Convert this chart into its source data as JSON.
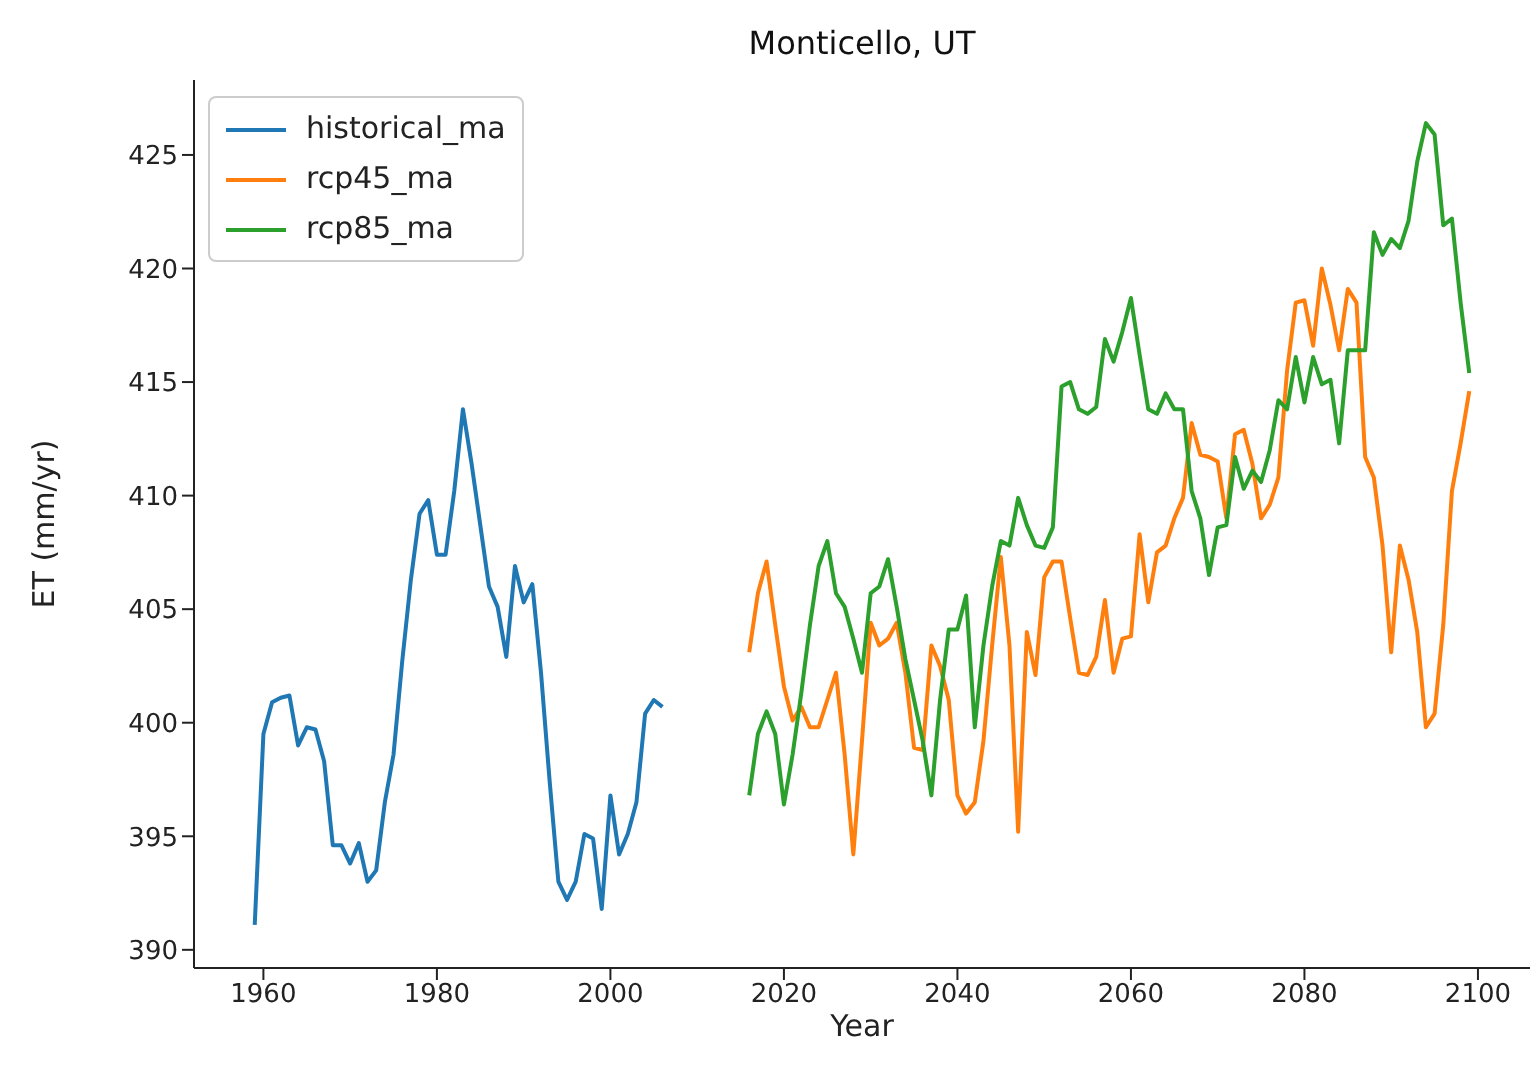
{
  "chart_data": {
    "type": "line",
    "title": "Monticello, UT",
    "xlabel": "Year",
    "ylabel": "ET (mm/yr)",
    "xlim": [
      1952,
      2106
    ],
    "xticks": [
      1960,
      1980,
      2000,
      2020,
      2040,
      2060,
      2080,
      2100
    ],
    "ylim": [
      389.2,
      428.3
    ],
    "yticks": [
      390,
      395,
      400,
      405,
      410,
      415,
      420,
      425
    ],
    "grid": false,
    "legend": "top left",
    "marker": "none",
    "line_style": "solid",
    "series": [
      {
        "name": "historical_ma",
        "color": "#1f77b4",
        "x": [
          1959,
          1960,
          1961,
          1962,
          1963,
          1964,
          1965,
          1966,
          1967,
          1968,
          1969,
          1970,
          1971,
          1972,
          1973,
          1974,
          1975,
          1976,
          1977,
          1978,
          1979,
          1980,
          1981,
          1982,
          1983,
          1984,
          1985,
          1986,
          1987,
          1988,
          1989,
          1990,
          1991,
          1992,
          1993,
          1994,
          1995,
          1996,
          1997,
          1998,
          1999,
          2000,
          2001,
          2002,
          2003,
          2004,
          2005,
          2006
        ],
        "values": [
          391.1,
          399.5,
          400.9,
          401.1,
          401.2,
          399.0,
          399.8,
          399.7,
          398.3,
          394.6,
          394.6,
          393.8,
          394.7,
          393.0,
          393.5,
          396.5,
          398.6,
          402.7,
          406.3,
          409.2,
          409.8,
          407.4,
          407.4,
          410.2,
          413.8,
          411.4,
          408.7,
          406.0,
          405.1,
          402.9,
          406.9,
          405.3,
          406.1,
          402.2,
          397.4,
          393.0,
          392.2,
          393.0,
          395.1,
          394.9,
          391.8,
          396.8,
          394.2,
          395.1,
          396.5,
          400.4,
          401.0,
          400.7
        ]
      },
      {
        "name": "rcp45_ma",
        "color": "#ff7f0e",
        "x": [
          2016,
          2017,
          2018,
          2019,
          2020,
          2021,
          2022,
          2023,
          2024,
          2025,
          2026,
          2027,
          2028,
          2029,
          2030,
          2031,
          2032,
          2033,
          2034,
          2035,
          2036,
          2037,
          2038,
          2039,
          2040,
          2041,
          2042,
          2043,
          2044,
          2045,
          2046,
          2047,
          2048,
          2049,
          2050,
          2051,
          2052,
          2053,
          2054,
          2055,
          2056,
          2057,
          2058,
          2059,
          2060,
          2061,
          2062,
          2063,
          2064,
          2065,
          2066,
          2067,
          2068,
          2069,
          2070,
          2071,
          2072,
          2073,
          2074,
          2075,
          2076,
          2077,
          2078,
          2079,
          2080,
          2081,
          2082,
          2083,
          2084,
          2085,
          2086,
          2087,
          2088,
          2089,
          2090,
          2091,
          2092,
          2093,
          2094,
          2095,
          2096,
          2097,
          2098,
          2099
        ],
        "values": [
          403.1,
          405.7,
          407.1,
          404.3,
          401.6,
          400.1,
          400.7,
          399.8,
          399.8,
          401.0,
          402.2,
          398.6,
          394.2,
          399.2,
          404.4,
          403.4,
          403.7,
          404.4,
          402.2,
          398.9,
          398.8,
          403.4,
          402.5,
          401.0,
          396.8,
          396.0,
          396.5,
          399.2,
          403.4,
          407.3,
          403.4,
          395.2,
          404.0,
          402.1,
          406.4,
          407.1,
          407.1,
          404.6,
          402.2,
          402.1,
          402.9,
          405.4,
          402.2,
          403.7,
          403.8,
          408.3,
          405.3,
          407.5,
          407.8,
          409.0,
          409.9,
          413.2,
          411.8,
          411.7,
          411.5,
          409.0,
          412.7,
          412.9,
          411.4,
          409.0,
          409.6,
          410.8,
          415.5,
          418.5,
          418.6,
          416.6,
          420.0,
          418.4,
          416.4,
          419.1,
          418.5,
          411.7,
          410.8,
          407.8,
          403.1,
          407.8,
          406.3,
          404.0,
          399.8,
          400.4,
          404.3,
          410.2,
          412.3,
          414.6
        ]
      },
      {
        "name": "rcp85_ma",
        "color": "#2ca02c",
        "x": [
          2016,
          2017,
          2018,
          2019,
          2020,
          2021,
          2022,
          2023,
          2024,
          2025,
          2026,
          2027,
          2028,
          2029,
          2030,
          2031,
          2032,
          2033,
          2034,
          2035,
          2036,
          2037,
          2038,
          2039,
          2040,
          2041,
          2042,
          2043,
          2044,
          2045,
          2046,
          2047,
          2048,
          2049,
          2050,
          2051,
          2052,
          2053,
          2054,
          2055,
          2056,
          2057,
          2058,
          2059,
          2060,
          2061,
          2062,
          2063,
          2064,
          2065,
          2066,
          2067,
          2068,
          2069,
          2070,
          2071,
          2072,
          2073,
          2074,
          2075,
          2076,
          2077,
          2078,
          2079,
          2080,
          2081,
          2082,
          2083,
          2084,
          2085,
          2086,
          2087,
          2088,
          2089,
          2090,
          2091,
          2092,
          2093,
          2094,
          2095,
          2096,
          2097,
          2098,
          2099
        ],
        "values": [
          396.8,
          399.5,
          400.5,
          399.5,
          396.4,
          398.6,
          401.3,
          404.3,
          406.9,
          408.0,
          405.7,
          405.1,
          403.7,
          402.2,
          405.7,
          406.0,
          407.2,
          405.1,
          402.8,
          401.0,
          399.2,
          396.8,
          401.0,
          404.1,
          404.1,
          405.6,
          399.8,
          403.4,
          406.0,
          408.0,
          407.8,
          409.9,
          408.7,
          407.8,
          407.7,
          408.6,
          414.8,
          415.0,
          413.8,
          413.6,
          413.9,
          416.9,
          415.9,
          417.2,
          418.7,
          416.2,
          413.8,
          413.6,
          414.5,
          413.8,
          413.8,
          410.2,
          409.0,
          406.5,
          408.6,
          408.7,
          411.7,
          410.3,
          411.1,
          410.6,
          412.0,
          414.2,
          413.8,
          416.1,
          414.1,
          416.1,
          414.9,
          415.1,
          412.3,
          416.4,
          416.4,
          416.4,
          421.6,
          420.6,
          421.3,
          420.9,
          422.1,
          424.7,
          426.4,
          425.9,
          421.9,
          422.2,
          418.5,
          415.4
        ]
      }
    ]
  }
}
